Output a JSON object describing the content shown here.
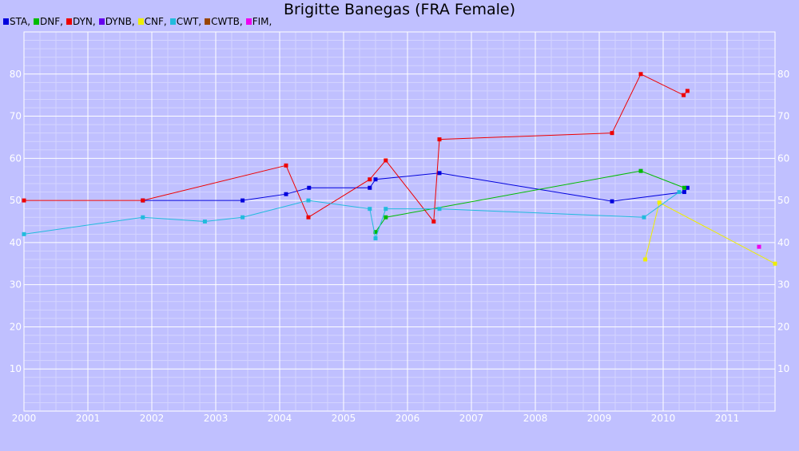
{
  "chart_data": {
    "type": "line",
    "title": "Brigitte Banegas (FRA Female)",
    "xlabel": "",
    "ylabel": "",
    "xlim": [
      2000.0,
      2011.75
    ],
    "ylim": [
      0,
      90
    ],
    "x_ticks": [
      "2000",
      "2001",
      "2002",
      "2003",
      "2004",
      "2005",
      "2006",
      "2007",
      "2008",
      "2009",
      "2010",
      "2011"
    ],
    "y_ticks": [
      10,
      20,
      30,
      40,
      50,
      60,
      70,
      80
    ],
    "grid": true,
    "legend_position": "top-left",
    "series": [
      {
        "name": "STA,",
        "color": "#0000dd",
        "points": [
          [
            2001.86,
            50
          ],
          [
            2003.42,
            50
          ],
          [
            2004.1,
            51.5
          ],
          [
            2004.46,
            53
          ],
          [
            2005.41,
            53
          ],
          [
            2005.5,
            55
          ],
          [
            2006.5,
            56.5
          ],
          [
            2009.2,
            49.8
          ],
          [
            2010.33,
            52
          ],
          [
            2010.38,
            53
          ]
        ]
      },
      {
        "name": "DNF,",
        "color": "#00bb00",
        "points": [
          [
            2005.5,
            42.5
          ],
          [
            2005.66,
            46
          ],
          [
            2009.65,
            57
          ],
          [
            2010.33,
            53
          ]
        ]
      },
      {
        "name": "DYN,",
        "color": "#ee0000",
        "points": [
          [
            2000.0,
            50
          ],
          [
            2001.86,
            50
          ],
          [
            2004.1,
            58.3
          ],
          [
            2004.45,
            46
          ],
          [
            2005.41,
            55
          ],
          [
            2005.66,
            59.5
          ],
          [
            2006.41,
            45
          ],
          [
            2006.5,
            64.5
          ],
          [
            2009.2,
            66
          ],
          [
            2009.65,
            80
          ],
          [
            2010.32,
            75
          ],
          [
            2010.38,
            76
          ]
        ]
      },
      {
        "name": "DYNB,",
        "color": "#6600ee",
        "points": []
      },
      {
        "name": "CNF,",
        "color": "#eeee00",
        "points": [
          [
            2009.72,
            36
          ],
          [
            2009.94,
            49.5
          ],
          [
            2011.75,
            35
          ]
        ]
      },
      {
        "name": "CWT,",
        "color": "#22bbdd",
        "points": [
          [
            2000.0,
            42
          ],
          [
            2001.86,
            46
          ],
          [
            2002.83,
            45
          ],
          [
            2003.42,
            46
          ],
          [
            2004.45,
            50
          ],
          [
            2005.41,
            48
          ],
          [
            2005.5,
            41
          ],
          [
            2005.66,
            48
          ],
          [
            2006.5,
            48
          ],
          [
            2009.7,
            46
          ],
          [
            2010.25,
            52
          ]
        ]
      },
      {
        "name": "CWTB,",
        "color": "#994400",
        "points": []
      },
      {
        "name": "FIM,",
        "color": "#ee00ee",
        "points": [
          [
            2011.5,
            39
          ]
        ]
      }
    ]
  }
}
